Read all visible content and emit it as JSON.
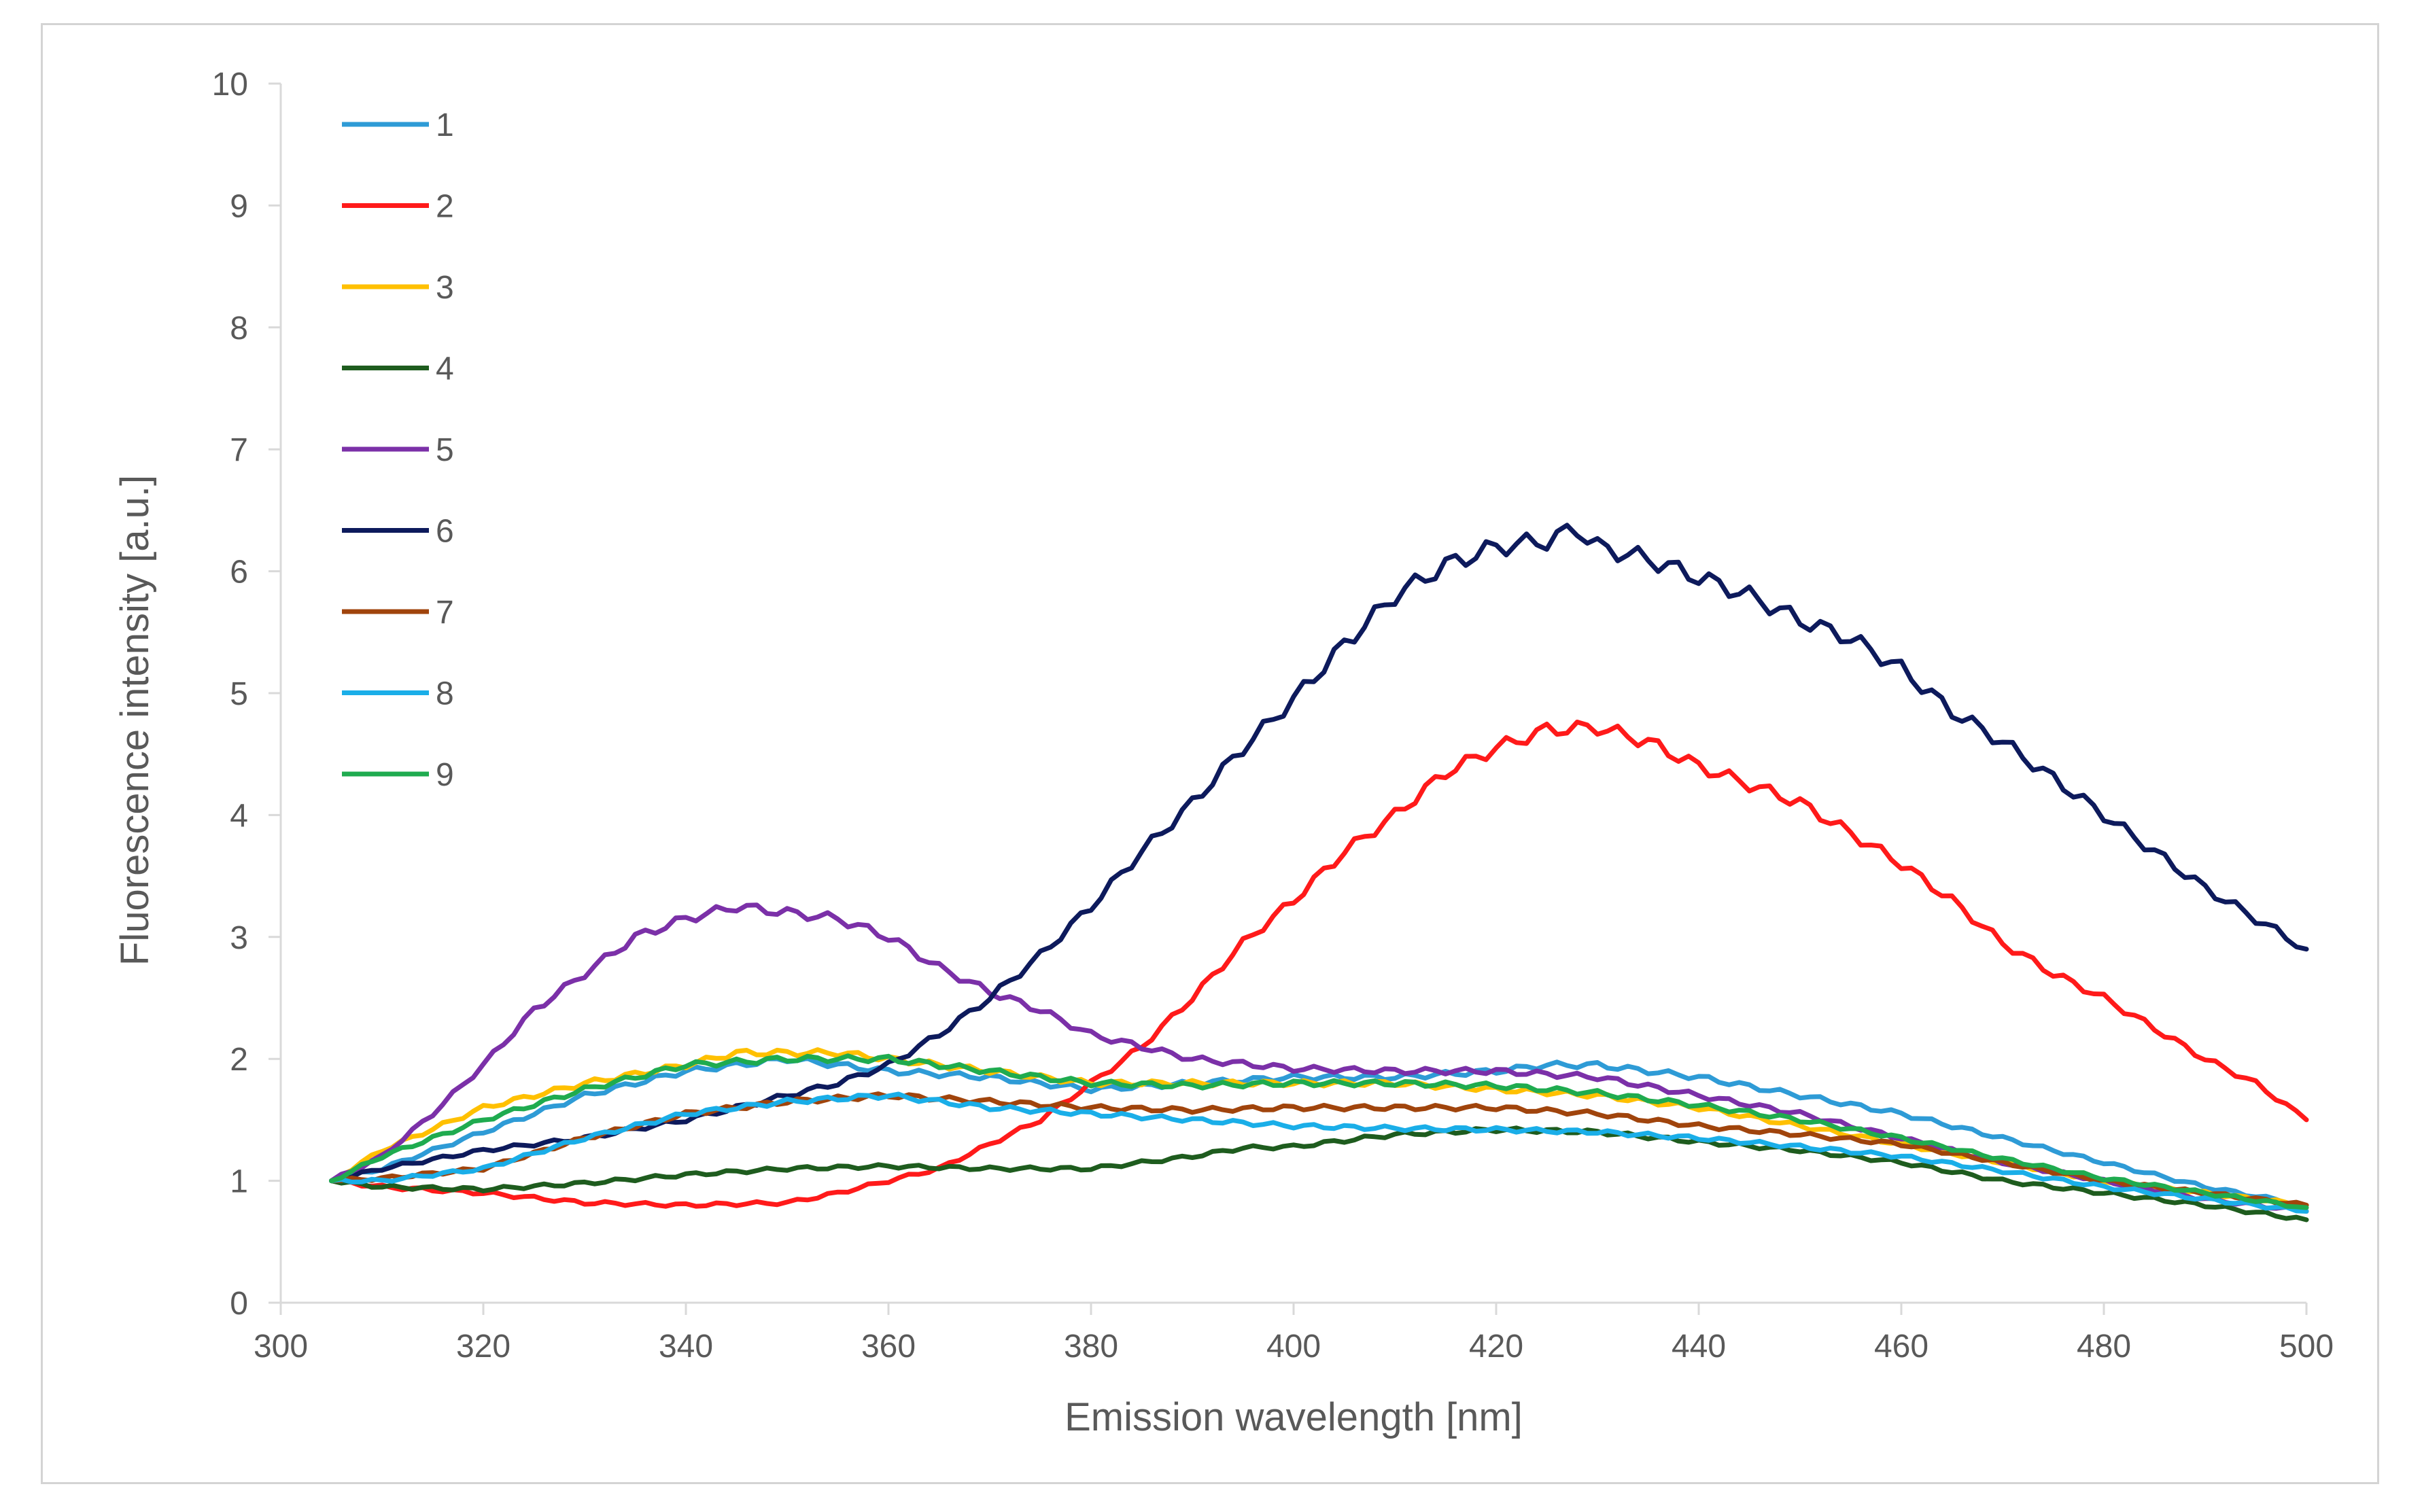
{
  "chart_data": {
    "type": "line",
    "title": "",
    "xlabel": "Emission wavelength [nm]",
    "ylabel": "Fluorescence intensity [a.u.]",
    "xlim": [
      300,
      500
    ],
    "ylim": [
      0,
      10
    ],
    "xticks": [
      "300",
      "320",
      "340",
      "360",
      "380",
      "400",
      "420",
      "440",
      "460",
      "480",
      "500"
    ],
    "yticks": [
      "0",
      "1",
      "2",
      "3",
      "4",
      "5",
      "6",
      "7",
      "8",
      "9",
      "10"
    ],
    "grid": false,
    "legend_position": "top-left",
    "series": [
      {
        "name": "1",
        "color": "#2e9bd6",
        "x": [
          305,
          310,
          320,
          330,
          340,
          350,
          360,
          370,
          380,
          390,
          400,
          410,
          420,
          425,
          430,
          440,
          450,
          460,
          470,
          480,
          490,
          500
        ],
        "y": [
          1.0,
          1.1,
          1.4,
          1.7,
          1.9,
          2.0,
          1.9,
          1.85,
          1.75,
          1.8,
          1.85,
          1.85,
          1.9,
          1.95,
          1.95,
          1.85,
          1.7,
          1.55,
          1.35,
          1.15,
          0.95,
          0.8
        ]
      },
      {
        "name": "2",
        "color": "#ff1a1a",
        "x": [
          305,
          310,
          320,
          330,
          340,
          350,
          355,
          360,
          365,
          370,
          375,
          380,
          385,
          390,
          395,
          400,
          405,
          410,
          415,
          420,
          425,
          430,
          435,
          440,
          445,
          450,
          455,
          460,
          465,
          470,
          475,
          480,
          485,
          490,
          495,
          500
        ],
        "y": [
          1.0,
          0.95,
          0.9,
          0.82,
          0.8,
          0.82,
          0.9,
          1.0,
          1.1,
          1.3,
          1.5,
          1.8,
          2.1,
          2.5,
          2.95,
          3.3,
          3.7,
          4.0,
          4.35,
          4.55,
          4.7,
          4.72,
          4.6,
          4.4,
          4.25,
          4.1,
          3.85,
          3.6,
          3.3,
          2.95,
          2.7,
          2.5,
          2.25,
          2.0,
          1.8,
          1.5
        ]
      },
      {
        "name": "3",
        "color": "#ffc000",
        "x": [
          305,
          310,
          320,
          330,
          340,
          345,
          350,
          355,
          360,
          370,
          380,
          390,
          400,
          410,
          420,
          430,
          440,
          450,
          460,
          470,
          480,
          490,
          500
        ],
        "y": [
          1.0,
          1.25,
          1.6,
          1.8,
          1.95,
          2.05,
          2.05,
          2.05,
          2.0,
          1.9,
          1.8,
          1.8,
          1.8,
          1.8,
          1.75,
          1.7,
          1.6,
          1.45,
          1.3,
          1.15,
          1.0,
          0.9,
          0.8
        ]
      },
      {
        "name": "4",
        "color": "#1e5c1e",
        "x": [
          305,
          310,
          320,
          330,
          340,
          350,
          360,
          370,
          380,
          390,
          395,
          400,
          410,
          420,
          430,
          440,
          450,
          460,
          470,
          480,
          490,
          500
        ],
        "y": [
          1.0,
          0.95,
          0.93,
          0.98,
          1.05,
          1.1,
          1.12,
          1.1,
          1.1,
          1.2,
          1.27,
          1.28,
          1.38,
          1.42,
          1.4,
          1.32,
          1.25,
          1.15,
          1.0,
          0.9,
          0.8,
          0.68
        ]
      },
      {
        "name": "5",
        "color": "#7b30a8",
        "x": [
          305,
          310,
          315,
          320,
          325,
          330,
          335,
          340,
          345,
          350,
          355,
          360,
          365,
          370,
          375,
          380,
          385,
          390,
          400,
          410,
          420,
          430,
          440,
          450,
          460,
          470,
          480,
          490,
          500
        ],
        "y": [
          1.0,
          1.2,
          1.55,
          1.95,
          2.4,
          2.7,
          3.0,
          3.15,
          3.25,
          3.2,
          3.15,
          3.0,
          2.75,
          2.55,
          2.4,
          2.2,
          2.1,
          2.0,
          1.92,
          1.9,
          1.9,
          1.85,
          1.7,
          1.55,
          1.35,
          1.15,
          1.0,
          0.85,
          0.75
        ]
      },
      {
        "name": "6",
        "color": "#0d1a5c",
        "x": [
          305,
          310,
          320,
          330,
          340,
          345,
          350,
          355,
          360,
          365,
          370,
          375,
          380,
          385,
          390,
          395,
          400,
          405,
          410,
          415,
          420,
          425,
          428,
          430,
          435,
          440,
          445,
          450,
          455,
          460,
          465,
          470,
          475,
          480,
          485,
          490,
          495,
          500
        ],
        "y": [
          1.0,
          1.1,
          1.25,
          1.35,
          1.5,
          1.6,
          1.7,
          1.8,
          1.95,
          2.2,
          2.5,
          2.85,
          3.25,
          3.7,
          4.1,
          4.55,
          4.95,
          5.4,
          5.8,
          6.05,
          6.2,
          6.25,
          6.35,
          6.2,
          6.1,
          5.95,
          5.8,
          5.6,
          5.45,
          5.2,
          4.85,
          4.6,
          4.3,
          4.0,
          3.7,
          3.4,
          3.15,
          2.9
        ]
      },
      {
        "name": "7",
        "color": "#a0440c",
        "x": [
          305,
          310,
          320,
          330,
          340,
          350,
          360,
          370,
          380,
          390,
          400,
          410,
          420,
          430,
          440,
          450,
          460,
          470,
          480,
          490,
          500
        ],
        "y": [
          1.0,
          1.02,
          1.1,
          1.35,
          1.55,
          1.65,
          1.7,
          1.65,
          1.6,
          1.58,
          1.6,
          1.6,
          1.6,
          1.55,
          1.45,
          1.38,
          1.3,
          1.15,
          1.0,
          0.9,
          0.8
        ]
      },
      {
        "name": "8",
        "color": "#1aaee8",
        "x": [
          305,
          310,
          320,
          330,
          340,
          350,
          360,
          370,
          380,
          390,
          400,
          410,
          420,
          430,
          440,
          450,
          460,
          470,
          480,
          490,
          500
        ],
        "y": [
          1.0,
          1.0,
          1.1,
          1.35,
          1.55,
          1.65,
          1.7,
          1.6,
          1.55,
          1.5,
          1.45,
          1.43,
          1.42,
          1.4,
          1.35,
          1.28,
          1.2,
          1.08,
          0.95,
          0.85,
          0.75
        ]
      },
      {
        "name": "9",
        "color": "#1fab4f",
        "x": [
          305,
          310,
          320,
          330,
          340,
          350,
          360,
          370,
          380,
          390,
          400,
          410,
          420,
          430,
          440,
          450,
          460,
          470,
          480,
          490,
          500
        ],
        "y": [
          1.0,
          1.2,
          1.5,
          1.75,
          1.95,
          2.0,
          2.0,
          1.9,
          1.8,
          1.78,
          1.8,
          1.8,
          1.78,
          1.72,
          1.62,
          1.5,
          1.35,
          1.18,
          1.02,
          0.9,
          0.78
        ]
      }
    ]
  }
}
